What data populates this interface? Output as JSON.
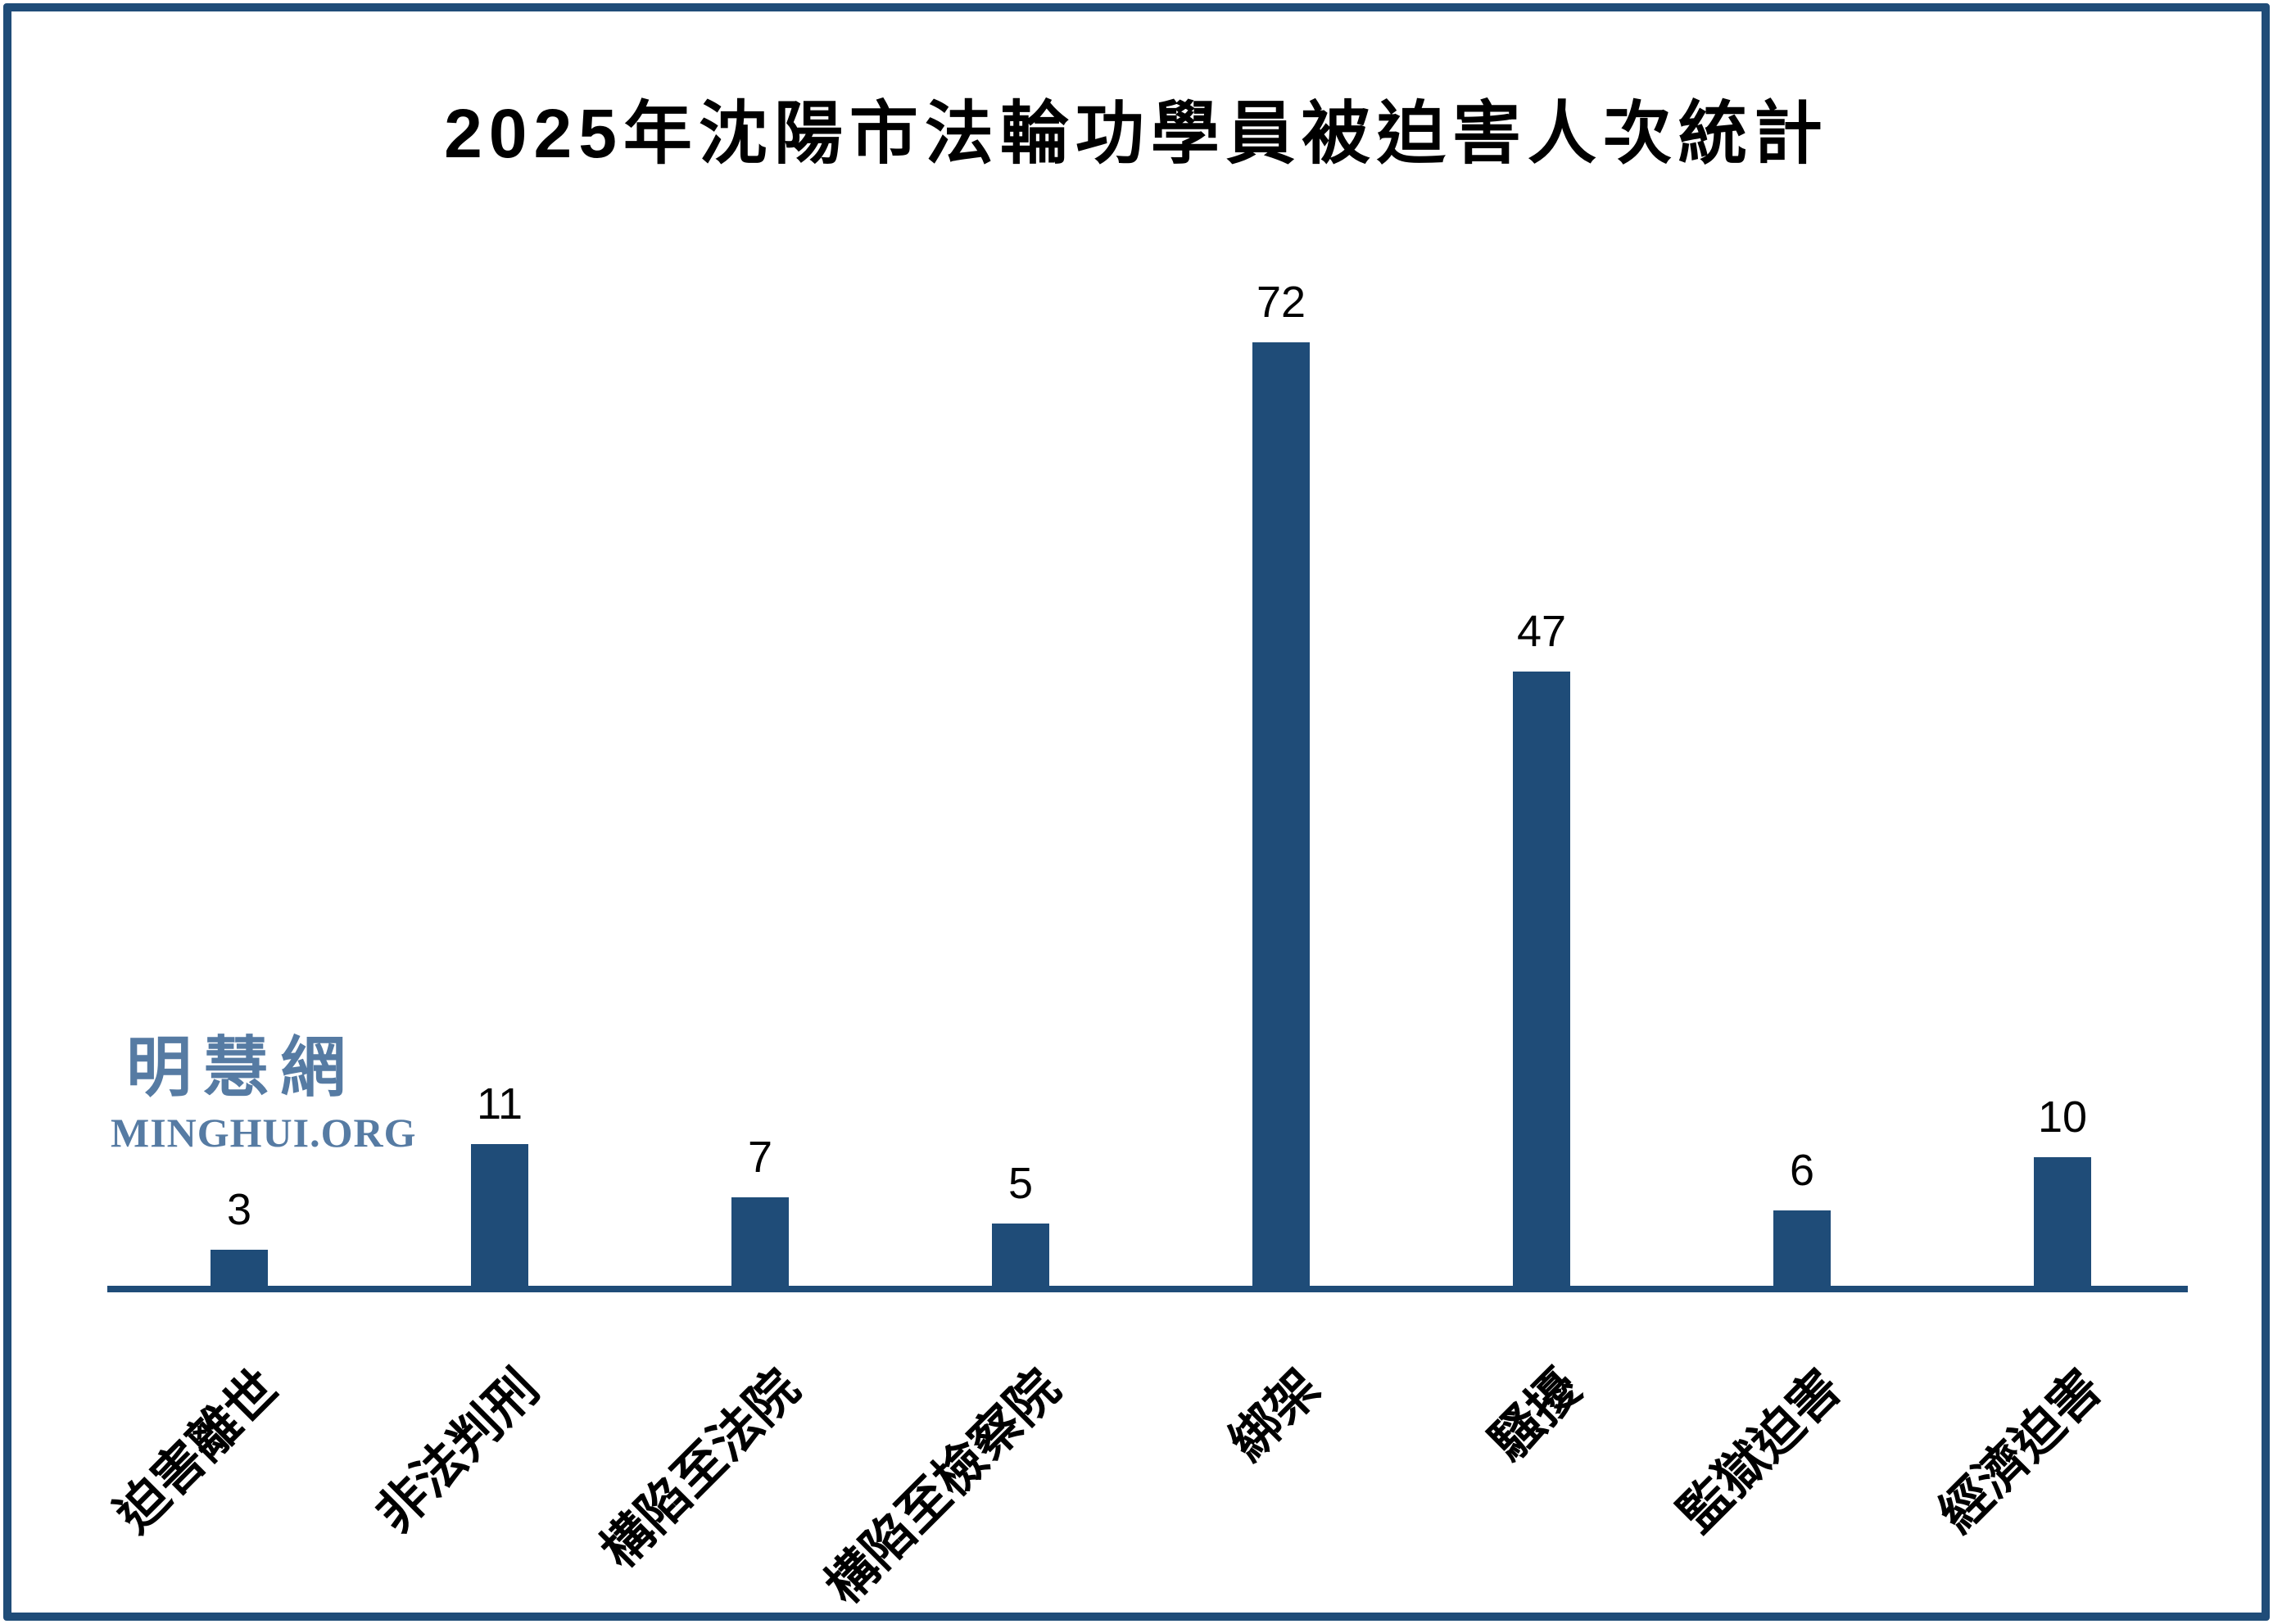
{
  "title": "2025年沈陽市法輪功學員被迫害人次統計",
  "watermark": {
    "cjk": "明慧網",
    "latin": "MINGHUI.ORG"
  },
  "colors": {
    "bar": "#1f4c78",
    "axis": "#1f4c78",
    "frame_border": "#1f4c78",
    "watermark": "#567ba3",
    "title_text": "#000000",
    "value_label_text": "#000000",
    "background": "#ffffff"
  },
  "chart_data": {
    "type": "bar",
    "title": "2025年沈陽市法輪功學員被迫害人次統計",
    "categories": [
      "迫害離世",
      "非法判刑",
      "構陷至法院",
      "構陷至檢察院",
      "綁架",
      "騷擾",
      "監獄迫害",
      "經濟迫害"
    ],
    "values": [
      3,
      11,
      7,
      5,
      72,
      47,
      6,
      10
    ],
    "series": [
      {
        "name": "被迫害人次",
        "values": [
          3,
          11,
          7,
          5,
          72,
          47,
          6,
          10
        ]
      }
    ],
    "xlabel": "",
    "ylabel": "",
    "ylim": [
      0,
      75
    ],
    "grid": false,
    "legend_position": "none",
    "y_axis_shown": false,
    "data_labels_shown": true,
    "x_tick_rotation_deg": 45
  }
}
